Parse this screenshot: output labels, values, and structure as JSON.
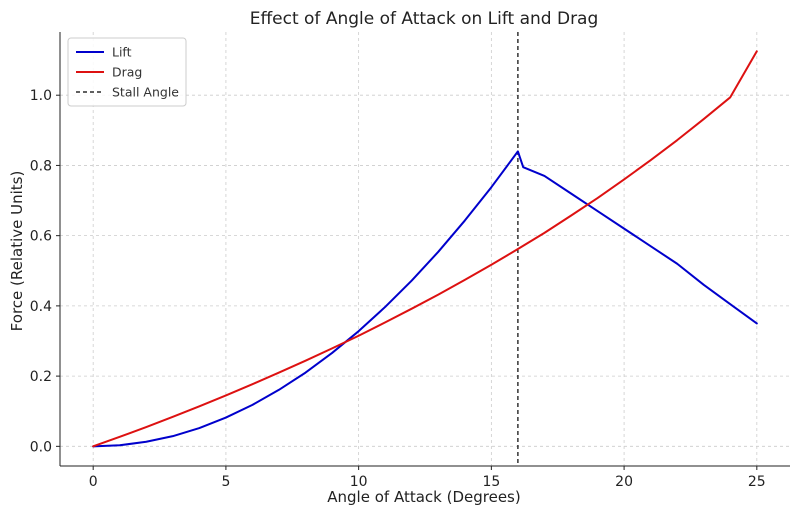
{
  "chart_data": {
    "type": "line",
    "title": "Effect of Angle of Attack on Lift and Drag",
    "xlabel": "Angle of Attack (Degrees)",
    "ylabel": "Force (Relative Units)",
    "xlim": [
      -1.25,
      26.25
    ],
    "ylim": [
      -0.056,
      1.18
    ],
    "xticks": [
      0,
      5,
      10,
      15,
      20,
      25
    ],
    "xtick_labels": [
      "0",
      "5",
      "10",
      "15",
      "20",
      "25"
    ],
    "yticks": [
      0.0,
      0.2,
      0.4,
      0.6,
      0.8,
      1.0
    ],
    "ytick_labels": [
      "0.0",
      "0.2",
      "0.4",
      "0.6",
      "0.8",
      "1.0"
    ],
    "grid": true,
    "legend_position": "top-left",
    "series": [
      {
        "name": "Lift",
        "color": "#0000cc",
        "style": "solid",
        "x": [
          0,
          1,
          2,
          3,
          4,
          5,
          6,
          7,
          8,
          9,
          10,
          11,
          12,
          13,
          14,
          15,
          16,
          16.2,
          17,
          18,
          19,
          20,
          21,
          22,
          23,
          24,
          25
        ],
        "y": [
          0.0,
          0.003,
          0.013,
          0.029,
          0.052,
          0.082,
          0.118,
          0.161,
          0.21,
          0.266,
          0.328,
          0.397,
          0.472,
          0.554,
          0.643,
          0.738,
          0.84,
          0.795,
          0.77,
          0.72,
          0.67,
          0.62,
          0.57,
          0.52,
          0.46,
          0.405,
          0.35
        ]
      },
      {
        "name": "Drag",
        "color": "#dd1111",
        "style": "solid",
        "x": [
          0,
          1,
          2,
          3,
          4,
          5,
          6,
          7,
          8,
          9,
          10,
          11,
          12,
          13,
          14,
          15,
          16,
          17,
          18,
          19,
          20,
          21,
          22,
          23,
          24,
          25
        ],
        "y": [
          0.0,
          0.027,
          0.055,
          0.084,
          0.114,
          0.145,
          0.177,
          0.21,
          0.244,
          0.279,
          0.315,
          0.353,
          0.392,
          0.432,
          0.474,
          0.517,
          0.562,
          0.608,
          0.657,
          0.707,
          0.76,
          0.815,
          0.872,
          0.932,
          0.994,
          1.125
        ]
      }
    ],
    "vlines": [
      {
        "name": "Stall Angle",
        "x": 16,
        "color": "#000000",
        "style": "dashed"
      }
    ]
  }
}
